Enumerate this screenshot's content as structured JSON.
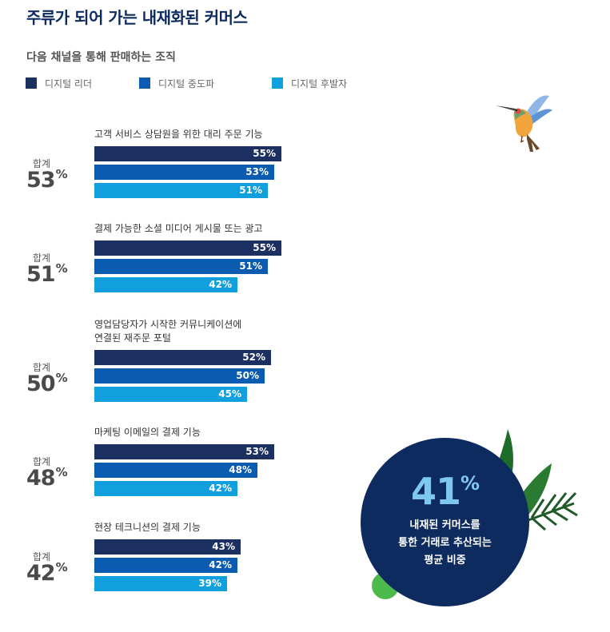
{
  "title": "주류가 되어 가는 내재화된 커머스",
  "subtitle": "다음 채널을 통해 판매하는 조직",
  "legend": [
    {
      "label": "디지털 리더",
      "color": "#1b2f60"
    },
    {
      "label": "디지털 중도파",
      "color": "#0b5bb0"
    },
    {
      "label": "디지털 후발자",
      "color": "#129fdd"
    }
  ],
  "total_label": "합계",
  "percent_sign": "%",
  "callout": {
    "value": "41",
    "line1": "내재된 커머스를",
    "line2": "통한 거래로 추산되는",
    "line3": "평균 비중"
  },
  "chart_data": {
    "type": "bar",
    "orientation": "horizontal",
    "categories": [
      [
        "고객 서비스 상담원을 위한 대리 주문 기능"
      ],
      [
        "결제 가능한 소셜 미디어 게시물 또는 광고"
      ],
      [
        "영업담당자가 시작한 커뮤니케이션에",
        "연결된 재주문 포털"
      ],
      [
        "마케팅 이메일의 결제 기능"
      ],
      [
        "현장 테크니션의 결제 기능"
      ]
    ],
    "totals": [
      53,
      51,
      50,
      48,
      42
    ],
    "series": [
      {
        "name": "디지털 리더",
        "values": [
          55,
          55,
          52,
          53,
          43
        ]
      },
      {
        "name": "디지털 중도파",
        "values": [
          53,
          51,
          50,
          48,
          42
        ]
      },
      {
        "name": "디지털 후발자",
        "values": [
          51,
          42,
          45,
          42,
          39
        ]
      }
    ],
    "value_suffix": "%"
  }
}
